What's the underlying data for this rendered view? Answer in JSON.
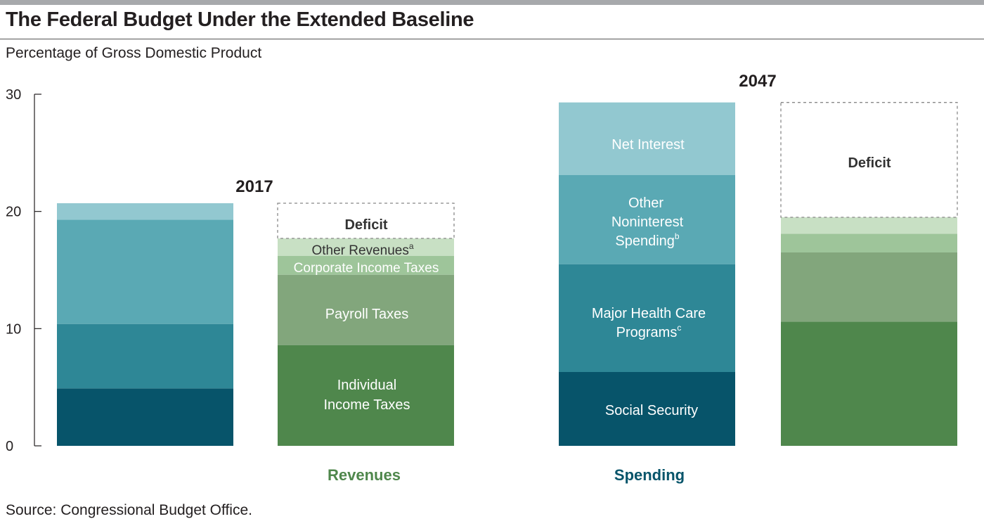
{
  "title": "The Federal Budget Under the Extended Baseline",
  "subtitle": "Percentage of Gross Domestic Product",
  "source": "Source: Congressional Budget Office.",
  "colors": {
    "social_security": "#07546a",
    "major_health": "#2e8796",
    "other_noninterest": "#5aa9b4",
    "net_interest": "#92c8d0",
    "individual_income": "#4f874c",
    "payroll": "#82a67c",
    "corporate": "#9ec59a",
    "other_revenues": "#c8e0c4",
    "deficit_border": "#888888",
    "revenues_label": "#4f874c",
    "spending_label": "#07546a"
  },
  "chart_data": {
    "type": "stacked-bar",
    "ylabel": "Percentage of Gross Domestic Product",
    "ylim": [
      0,
      30
    ],
    "yticks": [
      "0",
      "10",
      "20",
      "30"
    ],
    "groups": [
      {
        "year": "2017",
        "spending": [
          {
            "name": "Social Security",
            "value": 4.9
          },
          {
            "name": "Major Health Care Programs",
            "value": 5.5
          },
          {
            "name": "Other Noninterest Spending",
            "value": 8.9
          },
          {
            "name": "Net Interest",
            "value": 1.4
          }
        ],
        "revenues": [
          {
            "name": "Individual Income Taxes",
            "value": 8.6
          },
          {
            "name": "Payroll Taxes",
            "value": 6.0
          },
          {
            "name": "Corporate Income Taxes",
            "value": 1.6
          },
          {
            "name": "Other Revenues",
            "value": 1.5
          }
        ],
        "deficit": 3.0
      },
      {
        "year": "2047",
        "spending": [
          {
            "name": "Social Security",
            "value": 6.3
          },
          {
            "name": "Major Health Care Programs",
            "value": 9.2
          },
          {
            "name": "Other Noninterest Spending",
            "value": 7.6
          },
          {
            "name": "Net Interest",
            "value": 6.2
          }
        ],
        "revenues": [
          {
            "name": "Individual Income Taxes",
            "value": 10.6
          },
          {
            "name": "Payroll Taxes",
            "value": 5.9
          },
          {
            "name": "Corporate Income Taxes",
            "value": 1.6
          },
          {
            "name": "Other Revenues",
            "value": 1.4
          }
        ],
        "deficit": 9.8
      }
    ],
    "axis_labels": {
      "revenues": "Revenues",
      "spending": "Spending"
    },
    "segment_labels": {
      "deficit_2017": "Deficit",
      "other_revenues": "Other Revenues",
      "other_revenues_note": "a",
      "corporate": "Corporate Income Taxes",
      "payroll": "Payroll Taxes",
      "individual_line1": "Individual",
      "individual_line2": "Income Taxes",
      "net_interest": "Net Interest",
      "other_ns_line1": "Other",
      "other_ns_line2": "Noninterest",
      "other_ns_line3": "Spending",
      "other_ns_note": "b",
      "health_line1": "Major Health Care",
      "health_line2": "Programs",
      "health_note": "c",
      "social_security": "Social Security",
      "deficit_2047": "Deficit"
    }
  }
}
